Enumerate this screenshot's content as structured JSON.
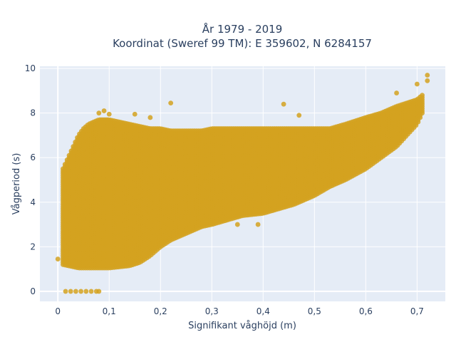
{
  "chart_data": {
    "type": "scatter",
    "title_lines": [
      "År 1979 - 2019",
      "Koordinat (Sweref 99 TM): E 359602, N 6284157"
    ],
    "xlabel": "Signifikant våghöjd (m)",
    "ylabel": "Vågperiod (s)",
    "xlim": [
      -0.035,
      0.755
    ],
    "ylim": [
      -0.45,
      10.1
    ],
    "x_ticks": [
      0,
      0.1,
      0.2,
      0.3,
      0.4,
      0.5,
      0.6,
      0.7
    ],
    "x_tick_labels": [
      "0",
      "0,1",
      "0,2",
      "0,3",
      "0,4",
      "0,5",
      "0,6",
      "0,7"
    ],
    "y_ticks": [
      0,
      2,
      4,
      6,
      8,
      10
    ],
    "y_tick_labels": [
      "0",
      "2",
      "4",
      "6",
      "8",
      "10"
    ],
    "grid": true,
    "marker_color": "#d4a220",
    "plot_background": "#e5ecf6",
    "series": [
      {
        "envelope": {
          "x": [
            0.01,
            0.02,
            0.03,
            0.04,
            0.05,
            0.06,
            0.07,
            0.08,
            0.09,
            0.1,
            0.12,
            0.14,
            0.16,
            0.18,
            0.2,
            0.22,
            0.25,
            0.28,
            0.3,
            0.33,
            0.36,
            0.4,
            0.43,
            0.46,
            0.5,
            0.53,
            0.56,
            0.6,
            0.63,
            0.66,
            0.7,
            0.71
          ],
          "y_min": [
            1.2,
            1.15,
            1.1,
            1.05,
            1.05,
            1.05,
            1.05,
            1.05,
            1.05,
            1.05,
            1.1,
            1.15,
            1.3,
            1.6,
            2.0,
            2.3,
            2.6,
            2.9,
            3.0,
            3.2,
            3.4,
            3.5,
            3.7,
            3.9,
            4.3,
            4.7,
            5.0,
            5.5,
            6.0,
            6.5,
            7.5,
            8.0
          ],
          "y_max": [
            5.5,
            6.0,
            6.5,
            7.0,
            7.3,
            7.5,
            7.6,
            7.7,
            7.7,
            7.7,
            7.6,
            7.5,
            7.4,
            7.3,
            7.3,
            7.2,
            7.2,
            7.2,
            7.3,
            7.3,
            7.3,
            7.3,
            7.3,
            7.3,
            7.3,
            7.3,
            7.5,
            7.8,
            8.0,
            8.3,
            8.6,
            8.8
          ]
        },
        "outliers": [
          {
            "x": 0.0,
            "y": 1.45
          },
          {
            "x": 0.08,
            "y": 8.0
          },
          {
            "x": 0.09,
            "y": 8.1
          },
          {
            "x": 0.1,
            "y": 7.95
          },
          {
            "x": 0.15,
            "y": 7.95
          },
          {
            "x": 0.18,
            "y": 7.8
          },
          {
            "x": 0.22,
            "y": 8.45
          },
          {
            "x": 0.44,
            "y": 8.4
          },
          {
            "x": 0.47,
            "y": 7.9
          },
          {
            "x": 0.66,
            "y": 8.9
          },
          {
            "x": 0.7,
            "y": 9.3
          },
          {
            "x": 0.72,
            "y": 9.7
          },
          {
            "x": 0.72,
            "y": 9.45
          },
          {
            "x": 0.015,
            "y": 0.0
          },
          {
            "x": 0.025,
            "y": 0.0
          },
          {
            "x": 0.035,
            "y": 0.0
          },
          {
            "x": 0.045,
            "y": 0.0
          },
          {
            "x": 0.055,
            "y": 0.0
          },
          {
            "x": 0.065,
            "y": 0.0
          },
          {
            "x": 0.075,
            "y": 0.0
          },
          {
            "x": 0.08,
            "y": 0.0
          },
          {
            "x": 0.39,
            "y": 3.0
          },
          {
            "x": 0.35,
            "y": 3.0
          }
        ]
      }
    ]
  }
}
